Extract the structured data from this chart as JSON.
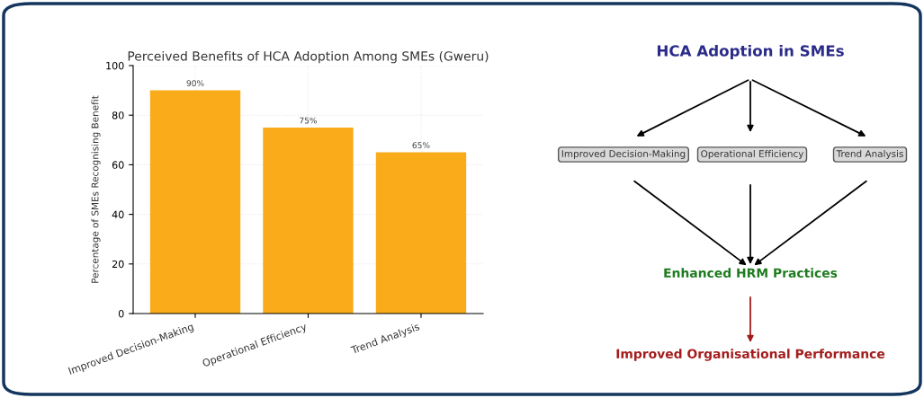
{
  "chart_data": [
    {
      "type": "bar",
      "title": "Perceived Benefits of HCA Adoption Among SMEs (Gweru)",
      "ylabel": "Percentage of SMEs Recognising Benefit",
      "categories": [
        "Improved Decision-Making",
        "Operational Efficiency",
        "Trend Analysis"
      ],
      "values": [
        90,
        75,
        65
      ],
      "value_labels": [
        "90%",
        "75%",
        "65%"
      ],
      "color": "#f9ab1a",
      "ylim": [
        0,
        100
      ],
      "yticks": [
        0,
        20,
        40,
        60,
        80,
        100
      ],
      "grid": true
    },
    {
      "type": "other",
      "title": "HCA Adoption in SMEs",
      "annotations": [
        "Improved Decision-Making",
        "Operational Efficiency",
        "Trend Analysis",
        "Enhanced HRM Practices",
        "Improved Organisational Performance"
      ]
    }
  ]
}
